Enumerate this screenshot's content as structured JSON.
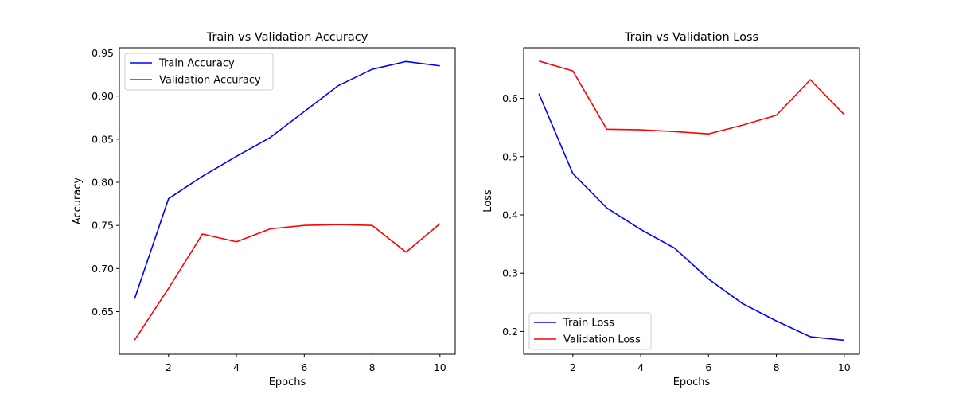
{
  "chart_data": [
    {
      "type": "line",
      "title": "Train vs Validation Accuracy",
      "xlabel": "Epochs",
      "ylabel": "Accuracy",
      "xlim": [
        0.55,
        10.45
      ],
      "ylim": [
        0.6006,
        0.956
      ],
      "xticks": [
        2,
        4,
        6,
        8,
        10
      ],
      "xtick_labels": [
        "2",
        "4",
        "6",
        "8",
        "10"
      ],
      "yticks": [
        0.65,
        0.7,
        0.75,
        0.8,
        0.85,
        0.9,
        0.95
      ],
      "ytick_labels": [
        "0.65",
        "0.70",
        "0.75",
        "0.80",
        "0.85",
        "0.90",
        "0.95"
      ],
      "grid": false,
      "legend_position": "upper-left",
      "x": [
        1,
        2,
        3,
        4,
        5,
        6,
        7,
        8,
        9,
        10
      ],
      "series": [
        {
          "name": "Train Accuracy",
          "color": "#0000ff",
          "values": [
            0.665,
            0.781,
            0.807,
            0.83,
            0.852,
            0.882,
            0.912,
            0.931,
            0.94,
            0.935
          ]
        },
        {
          "name": "Validation Accuracy",
          "color": "#ff0000",
          "values": [
            0.617,
            0.677,
            0.74,
            0.731,
            0.746,
            0.75,
            0.751,
            0.75,
            0.719,
            0.752
          ]
        }
      ]
    },
    {
      "type": "line",
      "title": "Train vs Validation Loss",
      "xlabel": "Epochs",
      "ylabel": "Loss",
      "xlim": [
        0.55,
        10.45
      ],
      "ylim": [
        0.161,
        0.6868
      ],
      "xticks": [
        2,
        4,
        6,
        8,
        10
      ],
      "xtick_labels": [
        "2",
        "4",
        "6",
        "8",
        "10"
      ],
      "yticks": [
        0.2,
        0.3,
        0.4,
        0.5,
        0.6
      ],
      "ytick_labels": [
        "0.2",
        "0.3",
        "0.4",
        "0.5",
        "0.6"
      ],
      "grid": false,
      "legend_position": "lower-left",
      "x": [
        1,
        2,
        3,
        4,
        5,
        6,
        7,
        8,
        9,
        10
      ],
      "series": [
        {
          "name": "Train Loss",
          "color": "#0000ff",
          "values": [
            0.608,
            0.471,
            0.412,
            0.375,
            0.343,
            0.29,
            0.248,
            0.218,
            0.191,
            0.185
          ]
        },
        {
          "name": "Validation Loss",
          "color": "#ff0000",
          "values": [
            0.664,
            0.647,
            0.547,
            0.546,
            0.543,
            0.539,
            0.554,
            0.571,
            0.632,
            0.572
          ]
        }
      ]
    }
  ]
}
